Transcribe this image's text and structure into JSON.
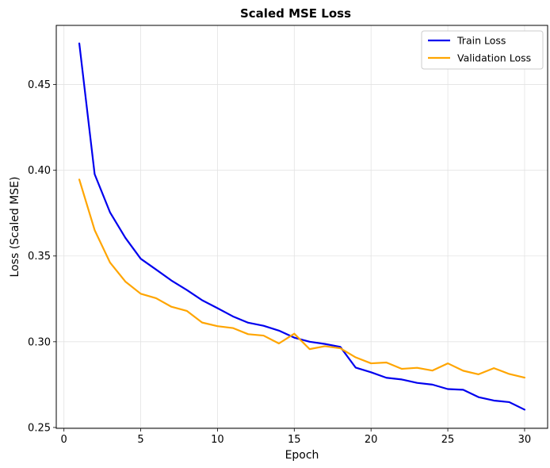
{
  "chart_data": {
    "type": "line",
    "title": "Scaled MSE Loss",
    "xlabel": "Epoch",
    "ylabel": "Loss (Scaled MSE)",
    "xlim": [
      -0.5,
      31.5
    ],
    "ylim": [
      0.2495,
      0.4845
    ],
    "xticks": [
      0,
      5,
      10,
      15,
      20,
      25,
      30
    ],
    "xtick_labels": [
      "0",
      "5",
      "10",
      "15",
      "20",
      "25",
      "30"
    ],
    "yticks": [
      0.25,
      0.3,
      0.35,
      0.4,
      0.45
    ],
    "ytick_labels": [
      "0.25",
      "0.30",
      "0.35",
      "0.40",
      "0.45"
    ],
    "grid": true,
    "legend": "top-right",
    "x": [
      1,
      2,
      3,
      4,
      5,
      6,
      7,
      8,
      9,
      10,
      11,
      12,
      13,
      14,
      15,
      16,
      17,
      18,
      19,
      20,
      21,
      22,
      23,
      24,
      25,
      26,
      27,
      28,
      29,
      30
    ],
    "series": [
      {
        "name": "Train Loss",
        "color": "#0000ee",
        "values": [
          0.474,
          0.3977,
          0.3755,
          0.3606,
          0.3484,
          0.3421,
          0.3357,
          0.3302,
          0.3242,
          0.3196,
          0.3148,
          0.3111,
          0.3093,
          0.3065,
          0.3024,
          0.3,
          0.2987,
          0.297,
          0.2849,
          0.2822,
          0.279,
          0.278,
          0.276,
          0.275,
          0.2724,
          0.272,
          0.2677,
          0.2657,
          0.2648,
          0.2604
        ]
      },
      {
        "name": "Validation Loss",
        "color": "#ffa500",
        "values": [
          0.3946,
          0.3651,
          0.3462,
          0.3351,
          0.328,
          0.3254,
          0.3204,
          0.318,
          0.3112,
          0.3091,
          0.308,
          0.3044,
          0.3036,
          0.299,
          0.3047,
          0.2957,
          0.2974,
          0.2962,
          0.2909,
          0.2874,
          0.2879,
          0.2842,
          0.2848,
          0.2832,
          0.2874,
          0.2831,
          0.281,
          0.2846,
          0.2812,
          0.2791
        ]
      }
    ]
  }
}
